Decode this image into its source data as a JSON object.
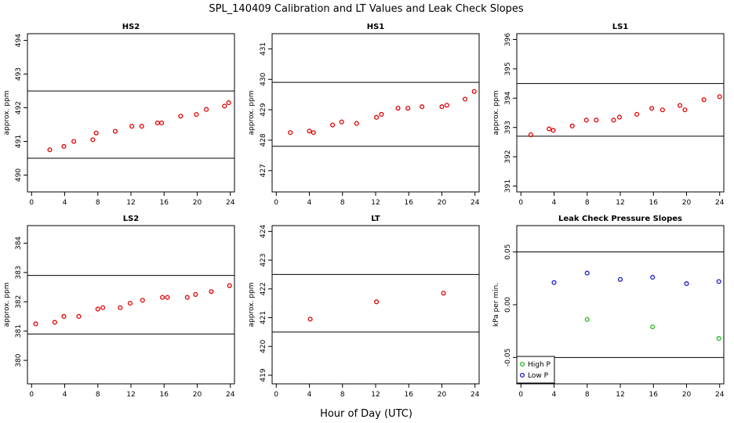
{
  "title": "SPL_140409  Calibration and LT Values and Leak Check Slopes",
  "xlabel": "Hour of Day (UTC)",
  "chart_data": [
    {
      "type": "scatter",
      "title": "HS2",
      "ylabel": "approx. ppm",
      "xlim": [
        -0.5,
        24.5
      ],
      "ylim": [
        489.5,
        494.2
      ],
      "xticks": [
        "0",
        "4",
        "8",
        "12",
        "16",
        "20",
        "24"
      ],
      "yticks": [
        "490",
        "491",
        "492",
        "493",
        "494"
      ],
      "hlines": [
        490.5,
        492.5
      ],
      "series": [
        {
          "color": "#e00000",
          "marker": "circle",
          "x": [
            2.2,
            3.9,
            5.1,
            7.4,
            7.8,
            10.1,
            12.1,
            13.3,
            15.2,
            15.7,
            18.0,
            19.9,
            21.1,
            23.3,
            23.8
          ],
          "y": [
            490.75,
            490.85,
            491.0,
            491.05,
            491.25,
            491.3,
            491.45,
            491.45,
            491.55,
            491.55,
            491.75,
            491.8,
            491.95,
            492.05,
            492.15
          ]
        }
      ]
    },
    {
      "type": "scatter",
      "title": "HS1",
      "ylabel": "approx. ppm",
      "xlim": [
        -0.5,
        24.5
      ],
      "ylim": [
        426.3,
        431.5
      ],
      "xticks": [
        "0",
        "4",
        "8",
        "12",
        "16",
        "20",
        "24"
      ],
      "yticks": [
        "427",
        "428",
        "429",
        "430",
        "431"
      ],
      "hlines": [
        427.8,
        429.9
      ],
      "series": [
        {
          "color": "#e00000",
          "marker": "circle",
          "x": [
            1.7,
            4.0,
            4.5,
            6.8,
            7.9,
            9.7,
            12.1,
            12.7,
            14.7,
            15.9,
            17.6,
            20.0,
            20.6,
            22.8,
            23.9
          ],
          "y": [
            428.25,
            428.3,
            428.25,
            428.5,
            428.6,
            428.55,
            428.75,
            428.85,
            429.05,
            429.05,
            429.1,
            429.1,
            429.15,
            429.35,
            429.6
          ]
        }
      ]
    },
    {
      "type": "scatter",
      "title": "LS1",
      "ylabel": "approx. ppm",
      "xlim": [
        -0.5,
        24.5
      ],
      "ylim": [
        390.8,
        396.2
      ],
      "xticks": [
        "0",
        "4",
        "8",
        "12",
        "16",
        "20",
        "24"
      ],
      "yticks": [
        "391",
        "392",
        "393",
        "394",
        "395",
        "396"
      ],
      "hlines": [
        392.7,
        394.5
      ],
      "series": [
        {
          "color": "#e00000",
          "marker": "circle",
          "x": [
            1.2,
            3.4,
            3.9,
            6.2,
            7.9,
            9.1,
            11.2,
            11.9,
            14.0,
            15.8,
            17.1,
            19.2,
            19.8,
            22.1,
            24.0
          ],
          "y": [
            392.75,
            392.95,
            392.9,
            393.05,
            393.25,
            393.25,
            393.25,
            393.35,
            393.45,
            393.65,
            393.6,
            393.75,
            393.6,
            393.95,
            394.05
          ]
        }
      ]
    },
    {
      "type": "scatter",
      "title": "LS2",
      "ylabel": "approx. ppm",
      "xlim": [
        -0.5,
        24.5
      ],
      "ylim": [
        379.2,
        384.6
      ],
      "xticks": [
        "0",
        "4",
        "8",
        "12",
        "16",
        "20",
        "24"
      ],
      "yticks": [
        "380",
        "381",
        "382",
        "383",
        "384"
      ],
      "hlines": [
        380.9,
        382.9
      ],
      "series": [
        {
          "color": "#e00000",
          "marker": "circle",
          "x": [
            0.5,
            2.8,
            3.9,
            5.7,
            8.0,
            8.6,
            10.7,
            11.9,
            13.4,
            15.8,
            16.4,
            18.8,
            19.8,
            21.7,
            23.9
          ],
          "y": [
            381.25,
            381.3,
            381.5,
            381.5,
            381.75,
            381.8,
            381.8,
            381.95,
            382.05,
            382.15,
            382.15,
            382.15,
            382.25,
            382.35,
            382.55
          ]
        }
      ]
    },
    {
      "type": "scatter",
      "title": "LT",
      "ylabel": "approx. ppm",
      "xlim": [
        -0.5,
        24.5
      ],
      "ylim": [
        418.7,
        424.2
      ],
      "xticks": [
        "0",
        "4",
        "8",
        "12",
        "16",
        "20",
        "24"
      ],
      "yticks": [
        "419",
        "420",
        "421",
        "422",
        "423",
        "424"
      ],
      "hlines": [
        420.5,
        422.5
      ],
      "series": [
        {
          "color": "#e00000",
          "marker": "circle",
          "x": [
            4.1,
            12.1,
            20.2
          ],
          "y": [
            420.95,
            421.55,
            421.85
          ]
        }
      ]
    },
    {
      "type": "scatter",
      "title": "Leak Check Pressure Slopes",
      "ylabel": "kPa per min.",
      "xlim": [
        -0.5,
        24.5
      ],
      "ylim": [
        -0.075,
        0.075
      ],
      "xticks": [
        "0",
        "4",
        "8",
        "12",
        "16",
        "20",
        "24"
      ],
      "yticks": [
        "-0.05",
        "0.00",
        "0.05"
      ],
      "hlines": [
        -0.05,
        0.05
      ],
      "legend": "bottom-left",
      "series": [
        {
          "name": "High P",
          "color": "#22bb22",
          "marker": "circle",
          "x": [
            8.0,
            15.9,
            23.9
          ],
          "y": [
            -0.014,
            -0.021,
            -0.032
          ]
        },
        {
          "name": "Low P",
          "color": "#1a1acc",
          "marker": "circle",
          "x": [
            4.0,
            8.0,
            12.0,
            15.9,
            20.0,
            23.9
          ],
          "y": [
            0.021,
            0.03,
            0.024,
            0.026,
            0.02,
            0.022
          ]
        }
      ]
    }
  ]
}
